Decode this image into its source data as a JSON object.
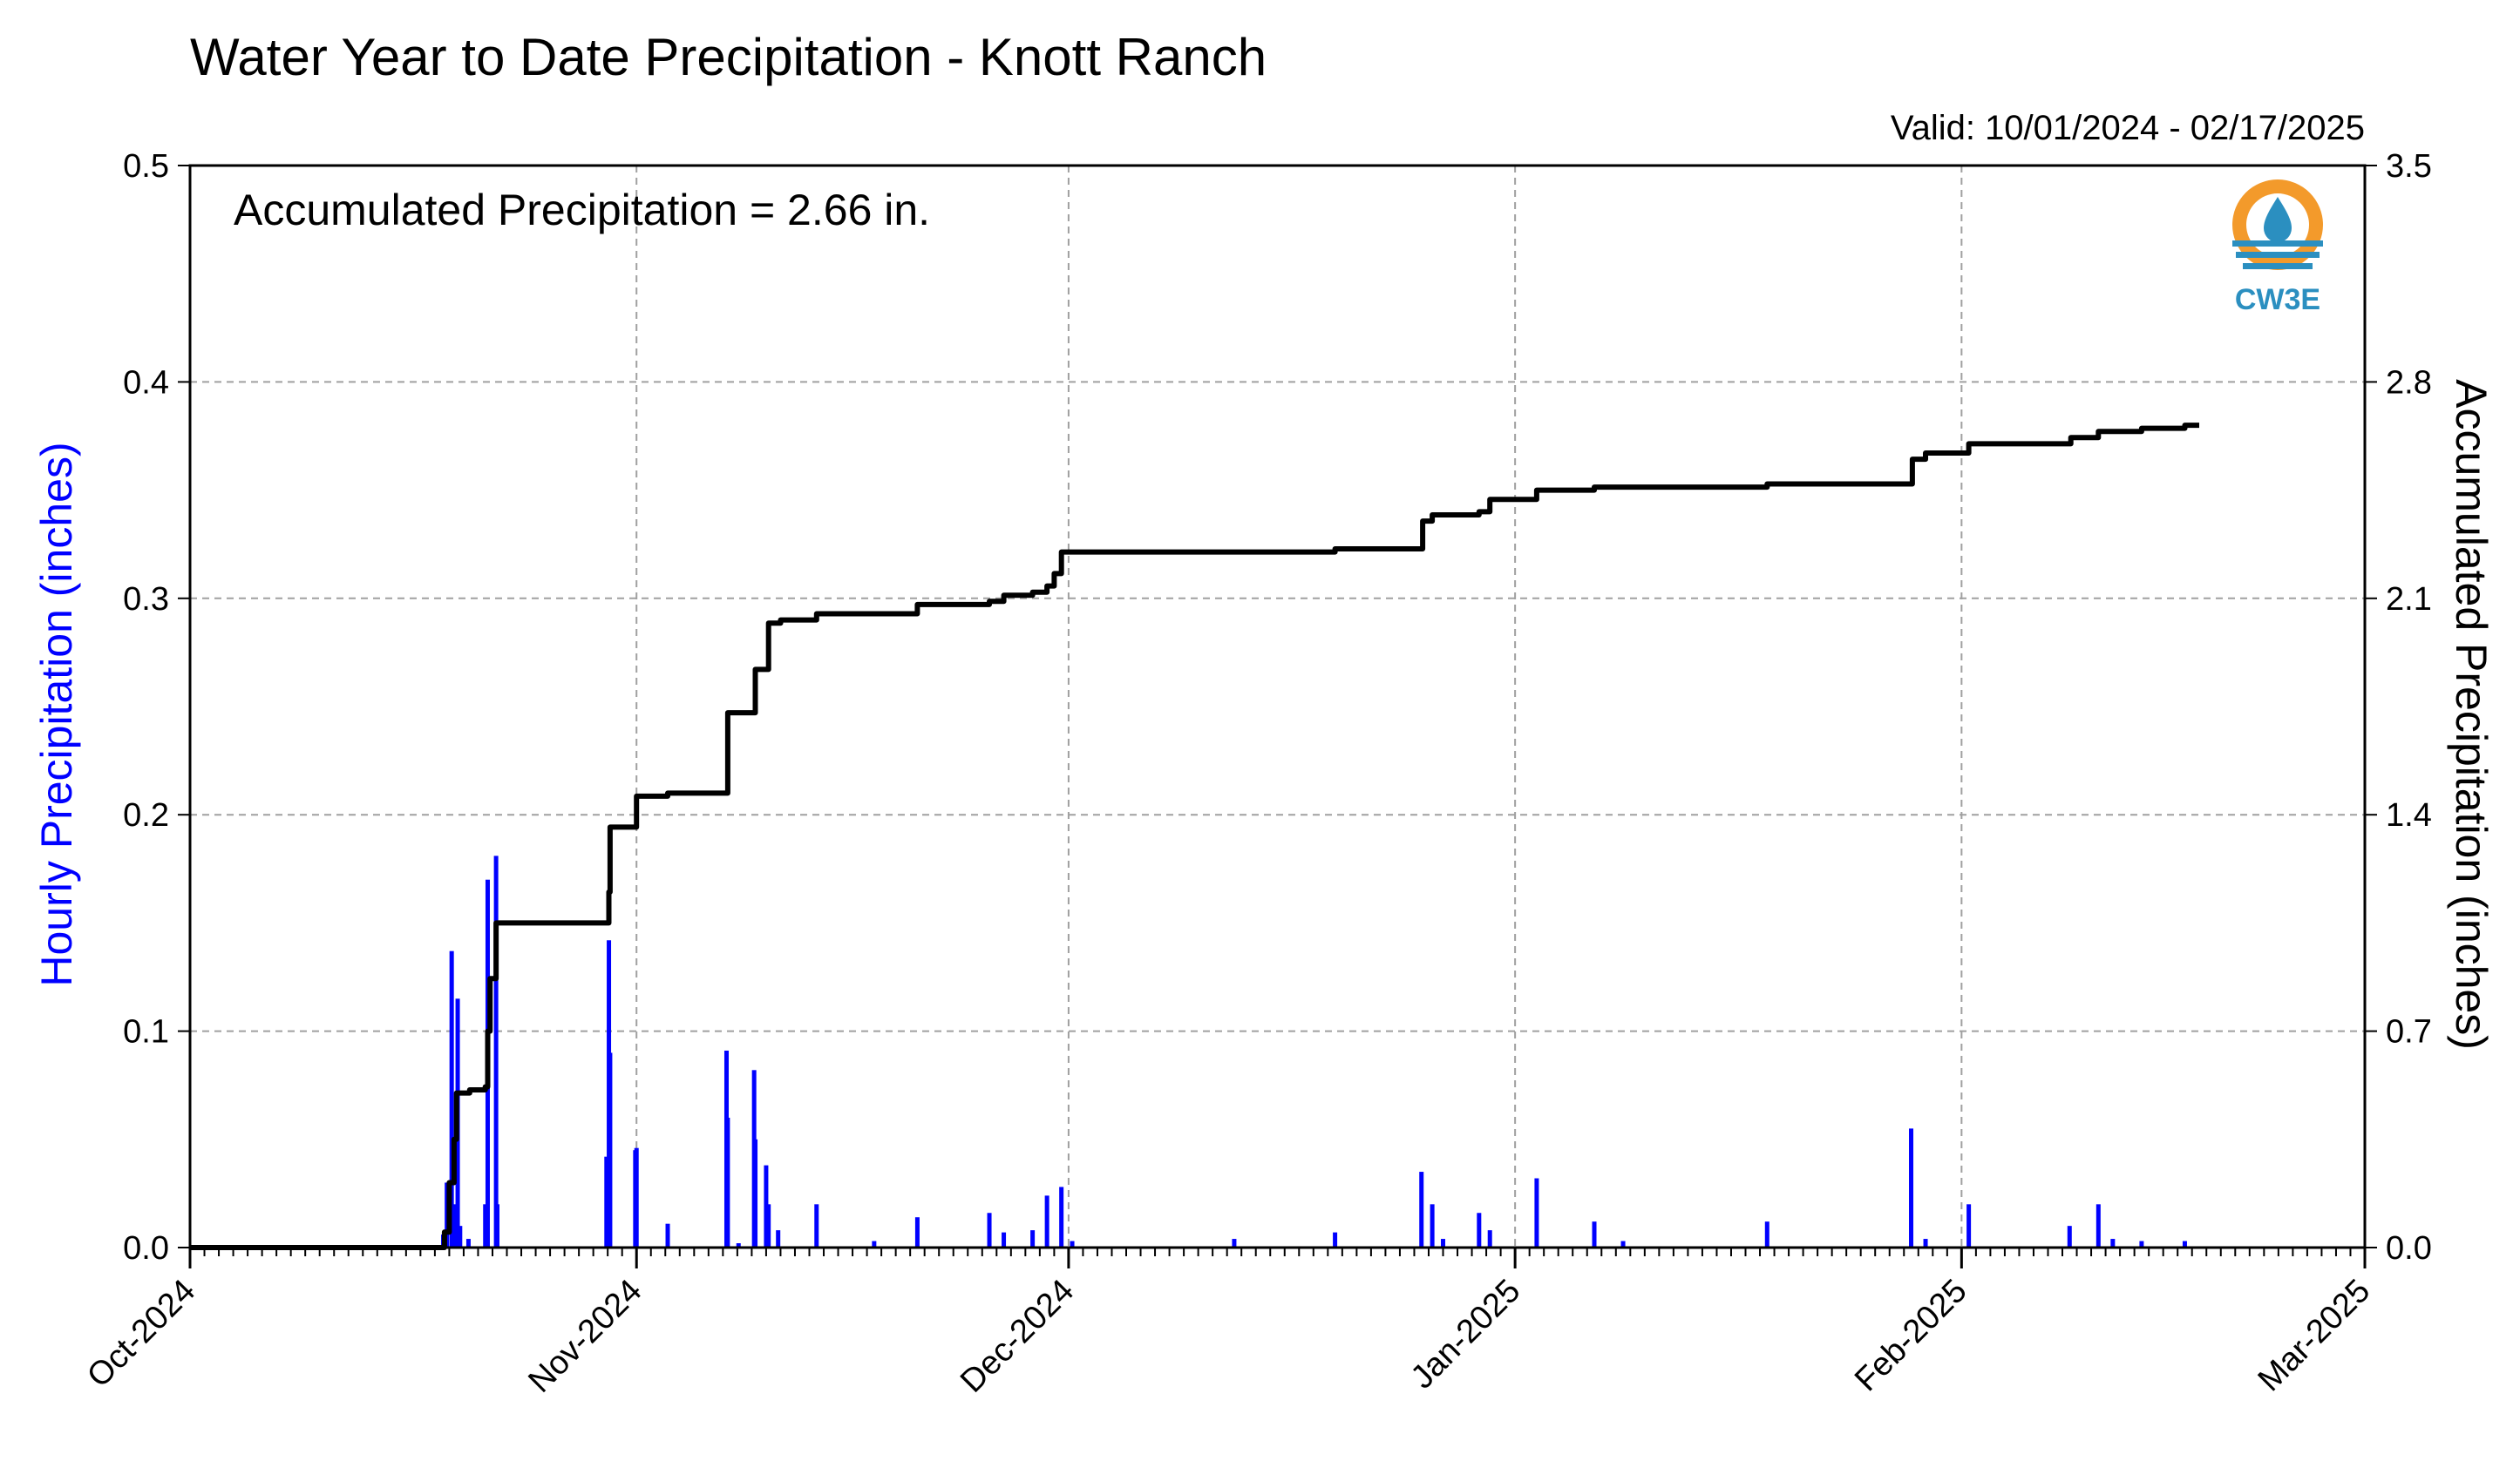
{
  "chart_data": {
    "type": "bar+line",
    "title": "Water Year to Date Precipitation - Knott Ranch",
    "subtitle": "Valid: 10/01/2024 - 02/17/2025",
    "annotation": "Accumulated Precipitation = 2.66 in.",
    "logo_text": "CW3E",
    "left_axis": {
      "label": "Hourly Precipitation (inches)",
      "ylim": [
        0,
        0.5
      ],
      "ticks": [
        "0.0",
        "0.1",
        "0.2",
        "0.3",
        "0.4",
        "0.5"
      ],
      "color": "#0000ff"
    },
    "right_axis": {
      "label": "Accumulated Precipitation (inches)",
      "ylim": [
        0,
        3.5
      ],
      "ticks": [
        "0.0",
        "0.7",
        "1.4",
        "2.1",
        "2.8",
        "3.5"
      ],
      "color": "#000000"
    },
    "x_axis": {
      "xlim": [
        "2024-10-01",
        "2025-03-01"
      ],
      "tick_dates": [
        "2024-10-01",
        "2024-11-01",
        "2024-12-01",
        "2025-01-01",
        "2025-02-01",
        "2025-03-01"
      ],
      "tick_labels": [
        "Oct-2024",
        "Nov-2024",
        "Dec-2024",
        "Jan-2025",
        "Feb-2025",
        "Mar-2025"
      ]
    },
    "grid": true,
    "series": [
      {
        "name": "Hourly Precipitation",
        "type": "bar",
        "color": "#0000ff",
        "points": [
          [
            "2024-10-18T14:00",
            0.006
          ],
          [
            "2024-10-18T20:00",
            0.03
          ],
          [
            "2024-10-19T04:00",
            0.137
          ],
          [
            "2024-10-19T08:00",
            0.02
          ],
          [
            "2024-10-19T14:00",
            0.115
          ],
          [
            "2024-10-19T18:00",
            0.01
          ],
          [
            "2024-10-20T08:00",
            0.004
          ],
          [
            "2024-10-21T12:00",
            0.02
          ],
          [
            "2024-10-21T16:00",
            0.17
          ],
          [
            "2024-10-22T06:00",
            0.181
          ],
          [
            "2024-10-22T08:00",
            0.02
          ],
          [
            "2024-10-29T22:00",
            0.042
          ],
          [
            "2024-10-30T02:00",
            0.142
          ],
          [
            "2024-10-30T04:00",
            0.09
          ],
          [
            "2024-10-31T22:00",
            0.045
          ],
          [
            "2024-11-01T00:00",
            0.046
          ],
          [
            "2024-11-03T04:00",
            0.011
          ],
          [
            "2024-11-07T06:00",
            0.091
          ],
          [
            "2024-11-07T08:00",
            0.06
          ],
          [
            "2024-11-08T02:00",
            0.002
          ],
          [
            "2024-11-09T04:00",
            0.082
          ],
          [
            "2024-11-09T06:00",
            0.05
          ],
          [
            "2024-11-10T00:00",
            0.038
          ],
          [
            "2024-11-10T04:00",
            0.02
          ],
          [
            "2024-11-10T20:00",
            0.008
          ],
          [
            "2024-11-13T12:00",
            0.02
          ],
          [
            "2024-11-17T12:00",
            0.003
          ],
          [
            "2024-11-20T12:00",
            0.014
          ],
          [
            "2024-11-25T12:00",
            0.016
          ],
          [
            "2024-11-26T12:00",
            0.007
          ],
          [
            "2024-11-28T12:00",
            0.008
          ],
          [
            "2024-11-29T12:00",
            0.024
          ],
          [
            "2024-11-30T12:00",
            0.028
          ],
          [
            "2024-12-01T06:00",
            0.003
          ],
          [
            "2024-12-12T12:00",
            0.004
          ],
          [
            "2024-12-19T12:00",
            0.007
          ],
          [
            "2024-12-25T12:00",
            0.035
          ],
          [
            "2024-12-26T06:00",
            0.02
          ],
          [
            "2024-12-27T00:00",
            0.004
          ],
          [
            "2024-12-29T12:00",
            0.016
          ],
          [
            "2024-12-30T06:00",
            0.008
          ],
          [
            "2025-01-02T12:00",
            0.032
          ],
          [
            "2025-01-06T12:00",
            0.012
          ],
          [
            "2025-01-08T12:00",
            0.003
          ],
          [
            "2025-01-18T12:00",
            0.012
          ],
          [
            "2025-01-28T12:00",
            0.055
          ],
          [
            "2025-01-29T12:00",
            0.004
          ],
          [
            "2025-02-01T12:00",
            0.02
          ],
          [
            "2025-02-08T12:00",
            0.01
          ],
          [
            "2025-02-10T12:00",
            0.02
          ],
          [
            "2025-02-11T12:00",
            0.004
          ],
          [
            "2025-02-13T12:00",
            0.003
          ],
          [
            "2025-02-16T12:00",
            0.003
          ]
        ]
      },
      {
        "name": "Accumulated Precipitation",
        "type": "step-line",
        "color": "#000000",
        "points": [
          [
            "2024-10-01T00:00",
            0.0
          ],
          [
            "2024-10-18T14:00",
            0.0
          ],
          [
            "2024-10-18T16:00",
            0.05
          ],
          [
            "2024-10-19T00:00",
            0.21
          ],
          [
            "2024-10-19T08:00",
            0.35
          ],
          [
            "2024-10-19T12:00",
            0.5
          ],
          [
            "2024-10-20T10:00",
            0.51
          ],
          [
            "2024-10-21T12:00",
            0.52
          ],
          [
            "2024-10-21T16:00",
            0.7
          ],
          [
            "2024-10-21T20:00",
            0.87
          ],
          [
            "2024-10-22T06:00",
            1.05
          ],
          [
            "2024-10-29T22:00",
            1.05
          ],
          [
            "2024-10-30T02:00",
            1.15
          ],
          [
            "2024-10-30T04:00",
            1.36
          ],
          [
            "2024-10-31T22:00",
            1.36
          ],
          [
            "2024-11-01T00:00",
            1.46
          ],
          [
            "2024-11-03T04:00",
            1.47
          ],
          [
            "2024-11-07T06:00",
            1.47
          ],
          [
            "2024-11-07T08:00",
            1.73
          ],
          [
            "2024-11-09T04:00",
            1.73
          ],
          [
            "2024-11-09T06:00",
            1.87
          ],
          [
            "2024-11-10T00:00",
            1.87
          ],
          [
            "2024-11-10T04:00",
            2.02
          ],
          [
            "2024-11-11T00:00",
            2.03
          ],
          [
            "2024-11-13T12:00",
            2.05
          ],
          [
            "2024-11-20T12:00",
            2.08
          ],
          [
            "2024-11-25T12:00",
            2.09
          ],
          [
            "2024-11-26T12:00",
            2.11
          ],
          [
            "2024-11-28T12:00",
            2.12
          ],
          [
            "2024-11-29T12:00",
            2.14
          ],
          [
            "2024-11-30T00:00",
            2.18
          ],
          [
            "2024-11-30T12:00",
            2.25
          ],
          [
            "2024-12-12T12:00",
            2.25
          ],
          [
            "2024-12-19T12:00",
            2.26
          ],
          [
            "2024-12-25T12:00",
            2.26
          ],
          [
            "2024-12-25T14:00",
            2.35
          ],
          [
            "2024-12-26T06:00",
            2.37
          ],
          [
            "2024-12-29T12:00",
            2.38
          ],
          [
            "2024-12-30T06:00",
            2.42
          ],
          [
            "2025-01-02T12:00",
            2.45
          ],
          [
            "2025-01-06T12:00",
            2.46
          ],
          [
            "2025-01-08T12:00",
            2.46
          ],
          [
            "2025-01-18T12:00",
            2.47
          ],
          [
            "2025-01-28T12:00",
            2.47
          ],
          [
            "2025-01-28T14:00",
            2.55
          ],
          [
            "2025-01-29T12:00",
            2.57
          ],
          [
            "2025-02-01T12:00",
            2.6
          ],
          [
            "2025-02-08T12:00",
            2.6
          ],
          [
            "2025-02-08T14:00",
            2.62
          ],
          [
            "2025-02-10T12:00",
            2.64
          ],
          [
            "2025-02-13T12:00",
            2.65
          ],
          [
            "2025-02-16T12:00",
            2.66
          ],
          [
            "2025-02-17T12:00",
            2.66
          ]
        ]
      }
    ]
  }
}
